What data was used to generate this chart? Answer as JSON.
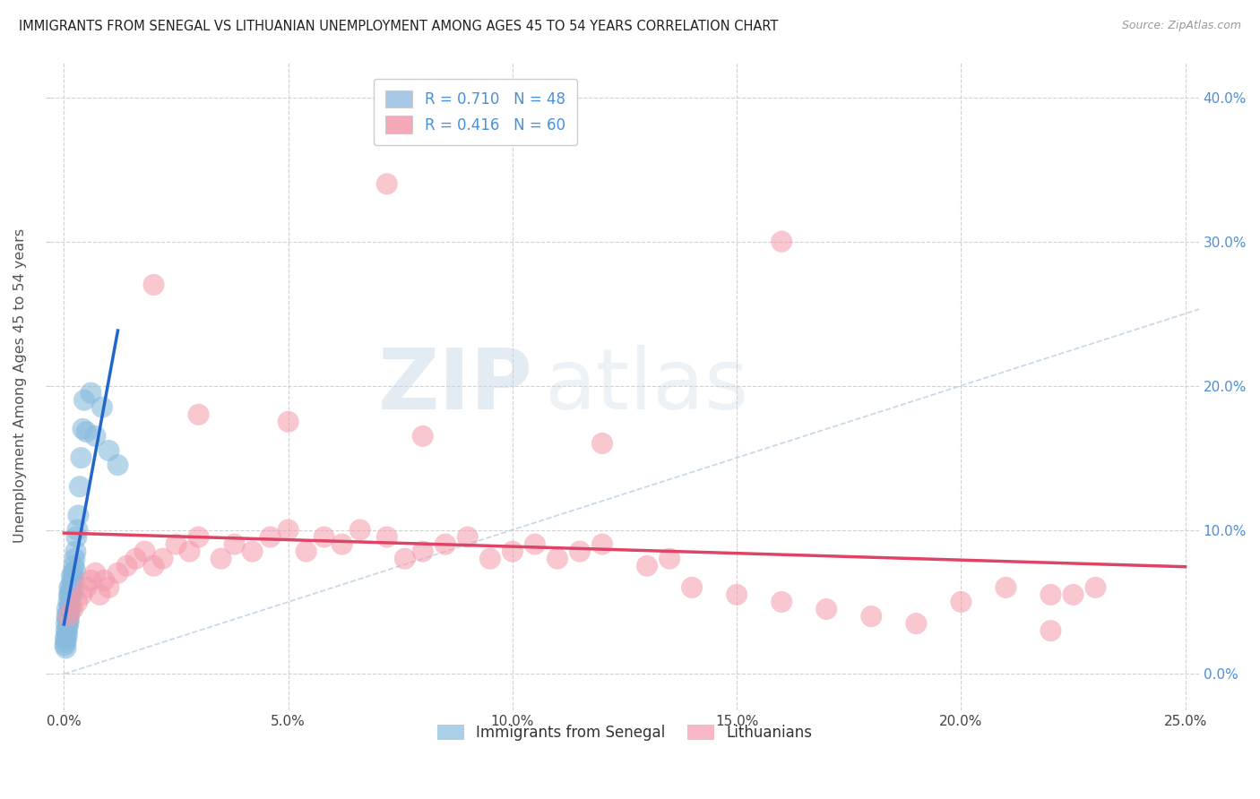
{
  "title": "IMMIGRANTS FROM SENEGAL VS LITHUANIAN UNEMPLOYMENT AMONG AGES 45 TO 54 YEARS CORRELATION CHART",
  "source": "Source: ZipAtlas.com",
  "ylabel": "Unemployment Among Ages 45 to 54 years",
  "legend1_label": "R = 0.710   N = 48",
  "legend2_label": "R = 0.416   N = 60",
  "legend1_patch_color": "#a8c8e8",
  "legend2_patch_color": "#f4a8b8",
  "series1_color": "#88bbdd",
  "series2_color": "#f499aa",
  "trendline1_color": "#2266cc",
  "trendline2_color": "#dd4466",
  "diag_line_color": "#b8cce4",
  "watermark_zip_color": "#c8d8e8",
  "watermark_atlas_color": "#c8d8e8",
  "background_color": "#ffffff",
  "grid_color": "#cccccc",
  "right_axis_color": "#4a90d9",
  "xlim": [
    0.0,
    0.25
  ],
  "ylim": [
    0.0,
    0.4
  ],
  "xticks": [
    0.0,
    0.05,
    0.1,
    0.15,
    0.2,
    0.25
  ],
  "yticks": [
    0.0,
    0.1,
    0.2,
    0.3,
    0.4
  ],
  "s1_x": [
    0.0002,
    0.0003,
    0.0004,
    0.0004,
    0.0005,
    0.0005,
    0.0006,
    0.0006,
    0.0007,
    0.0007,
    0.0008,
    0.0008,
    0.0009,
    0.001,
    0.001,
    0.0011,
    0.0011,
    0.0012,
    0.0012,
    0.0013,
    0.0013,
    0.0014,
    0.0015,
    0.0015,
    0.0016,
    0.0017,
    0.0018,
    0.0019,
    0.002,
    0.0021,
    0.0022,
    0.0023,
    0.0024,
    0.0025,
    0.0026,
    0.0028,
    0.003,
    0.0032,
    0.0035,
    0.0038,
    0.0042,
    0.0045,
    0.005,
    0.006,
    0.007,
    0.0085,
    0.01,
    0.012
  ],
  "s1_y": [
    0.02,
    0.025,
    0.018,
    0.022,
    0.03,
    0.035,
    0.025,
    0.04,
    0.028,
    0.045,
    0.032,
    0.038,
    0.042,
    0.035,
    0.05,
    0.038,
    0.055,
    0.042,
    0.06,
    0.048,
    0.055,
    0.052,
    0.058,
    0.045,
    0.062,
    0.068,
    0.055,
    0.065,
    0.07,
    0.058,
    0.075,
    0.065,
    0.08,
    0.072,
    0.085,
    0.095,
    0.1,
    0.11,
    0.13,
    0.15,
    0.17,
    0.19,
    0.168,
    0.195,
    0.165,
    0.185,
    0.155,
    0.145
  ],
  "s2_x": [
    0.001,
    0.002,
    0.003,
    0.004,
    0.005,
    0.006,
    0.007,
    0.008,
    0.009,
    0.01,
    0.012,
    0.014,
    0.016,
    0.018,
    0.02,
    0.022,
    0.025,
    0.028,
    0.03,
    0.035,
    0.038,
    0.042,
    0.046,
    0.05,
    0.054,
    0.058,
    0.062,
    0.066,
    0.072,
    0.076,
    0.08,
    0.085,
    0.09,
    0.095,
    0.1,
    0.105,
    0.11,
    0.115,
    0.12,
    0.13,
    0.135,
    0.14,
    0.15,
    0.16,
    0.17,
    0.18,
    0.19,
    0.2,
    0.21,
    0.22,
    0.225,
    0.23,
    0.072,
    0.16,
    0.03,
    0.05,
    0.08,
    0.12,
    0.22,
    0.02
  ],
  "s2_y": [
    0.04,
    0.045,
    0.05,
    0.055,
    0.06,
    0.065,
    0.07,
    0.055,
    0.065,
    0.06,
    0.07,
    0.075,
    0.08,
    0.085,
    0.075,
    0.08,
    0.09,
    0.085,
    0.095,
    0.08,
    0.09,
    0.085,
    0.095,
    0.1,
    0.085,
    0.095,
    0.09,
    0.1,
    0.095,
    0.08,
    0.085,
    0.09,
    0.095,
    0.08,
    0.085,
    0.09,
    0.08,
    0.085,
    0.09,
    0.075,
    0.08,
    0.06,
    0.055,
    0.05,
    0.045,
    0.04,
    0.035,
    0.05,
    0.06,
    0.055,
    0.055,
    0.06,
    0.34,
    0.3,
    0.18,
    0.175,
    0.165,
    0.16,
    0.03,
    0.27
  ]
}
